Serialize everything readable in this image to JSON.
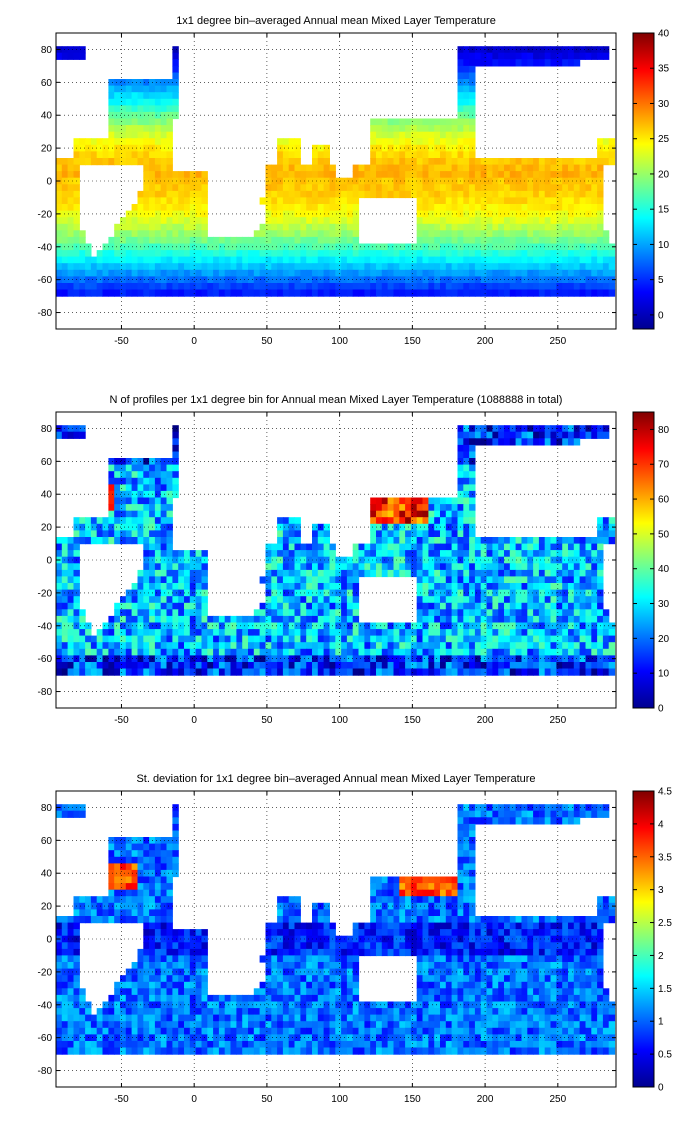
{
  "chart_data": [
    {
      "type": "heatmap",
      "title": "1x1 degree bin–averaged Annual mean Mixed Layer Temperature",
      "xlabel": "",
      "ylabel": "",
      "xlim": [
        -95,
        290
      ],
      "ylim": [
        -90,
        90
      ],
      "xticks": [
        -50,
        0,
        50,
        100,
        150,
        200,
        250
      ],
      "yticks": [
        80,
        60,
        40,
        20,
        0,
        -20,
        -40,
        -60,
        -80
      ],
      "grid": true,
      "colormap": "jet",
      "clim": [
        -2,
        40
      ],
      "colorbar_ticks": [
        40,
        35,
        30,
        25,
        20,
        15,
        10,
        5,
        0
      ],
      "field": "temperature"
    },
    {
      "type": "heatmap",
      "title": "N of profiles per 1x1 degree bin for Annual mean Mixed Layer Temperature  (1088888 in total)",
      "xlabel": "",
      "ylabel": "",
      "xlim": [
        -95,
        290
      ],
      "ylim": [
        -90,
        90
      ],
      "xticks": [
        -50,
        0,
        50,
        100,
        150,
        200,
        250
      ],
      "yticks": [
        80,
        60,
        40,
        20,
        0,
        -20,
        -40,
        -60,
        -80
      ],
      "grid": true,
      "colormap": "jet",
      "clim": [
        0,
        85
      ],
      "colorbar_ticks": [
        80,
        70,
        60,
        50,
        40,
        30,
        20,
        10,
        0
      ],
      "field": "count"
    },
    {
      "type": "heatmap",
      "title": "St. deviation for 1x1 degree bin–averaged Annual mean Mixed Layer Temperature",
      "xlabel": "",
      "ylabel": "",
      "xlim": [
        -95,
        290
      ],
      "ylim": [
        -90,
        90
      ],
      "xticks": [
        -50,
        0,
        50,
        100,
        150,
        200,
        250
      ],
      "yticks": [
        80,
        60,
        40,
        20,
        0,
        -20,
        -40,
        -60,
        -80
      ],
      "grid": true,
      "colormap": "jet",
      "clim": [
        0,
        4.5
      ],
      "colorbar_ticks": [
        4.5,
        4,
        3.5,
        3,
        2.5,
        2,
        1.5,
        1,
        0.5,
        0
      ],
      "field": "stdev"
    }
  ]
}
